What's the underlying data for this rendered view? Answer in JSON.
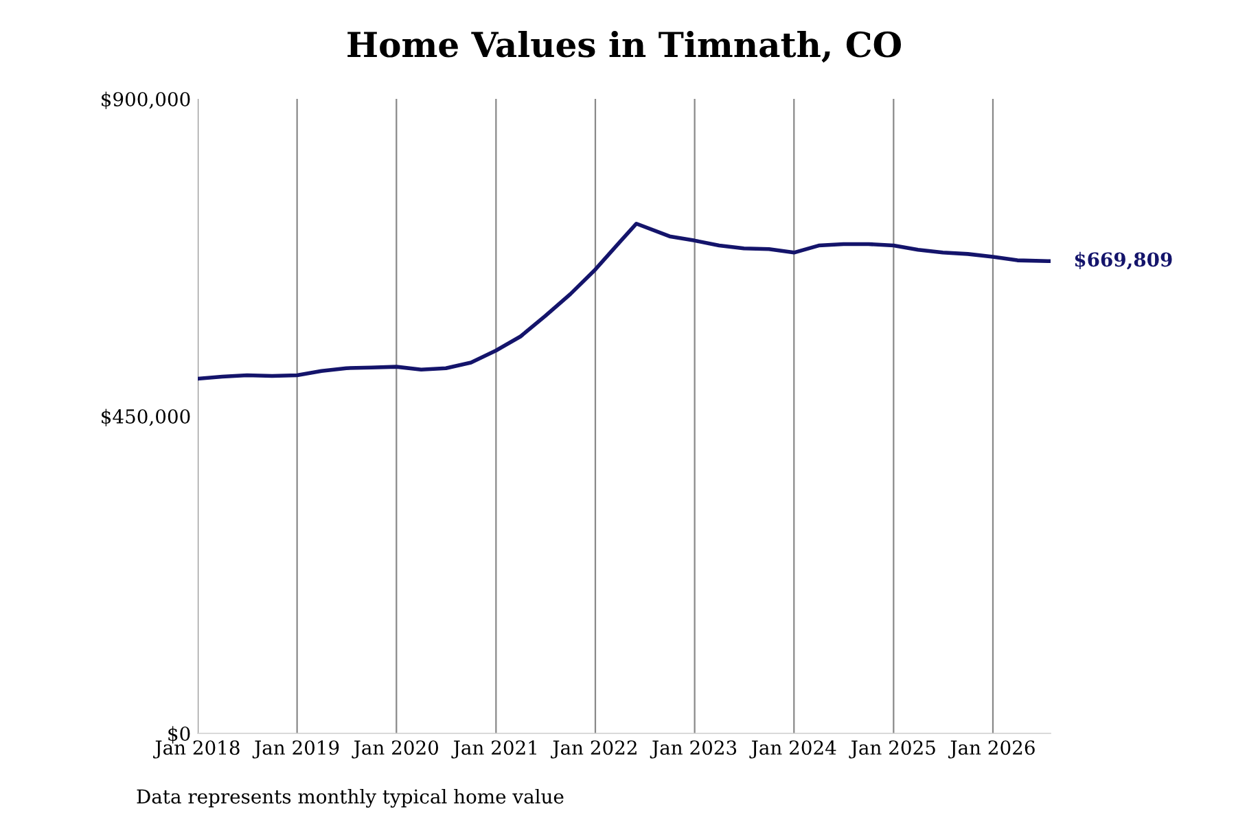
{
  "chart_data": {
    "type": "line",
    "title": "Home Values in Timnath, CO",
    "x": [
      "2018-01",
      "2018-04",
      "2018-07",
      "2018-10",
      "2019-01",
      "2019-04",
      "2019-07",
      "2019-10",
      "2020-01",
      "2020-04",
      "2020-07",
      "2020-10",
      "2021-01",
      "2021-04",
      "2021-07",
      "2021-10",
      "2022-01",
      "2022-04",
      "2022-06",
      "2022-10",
      "2023-01",
      "2023-04",
      "2023-07",
      "2023-10",
      "2024-01",
      "2024-04",
      "2024-07",
      "2024-10",
      "2025-01",
      "2025-04",
      "2025-07",
      "2025-10",
      "2026-01",
      "2026-04",
      "2026-08"
    ],
    "series": [
      {
        "color": "#14146b",
        "values": [
          503000,
          506000,
          508000,
          507000,
          508000,
          514000,
          518000,
          519000,
          520000,
          516000,
          518000,
          526000,
          543000,
          563000,
          592000,
          623000,
          658000,
          697000,
          723000,
          705000,
          699000,
          692000,
          688000,
          687000,
          682000,
          692000,
          694000,
          694000,
          692000,
          686000,
          682000,
          680000,
          676000,
          671000,
          669809
        ]
      }
    ],
    "xticks": [
      {
        "value": "2018-01",
        "label": "Jan 2018"
      },
      {
        "value": "2019-01",
        "label": "Jan 2019"
      },
      {
        "value": "2020-01",
        "label": "Jan 2020"
      },
      {
        "value": "2021-01",
        "label": "Jan 2021"
      },
      {
        "value": "2022-01",
        "label": "Jan 2022"
      },
      {
        "value": "2023-01",
        "label": "Jan 2023"
      },
      {
        "value": "2024-01",
        "label": "Jan 2024"
      },
      {
        "value": "2025-01",
        "label": "Jan 2025"
      },
      {
        "value": "2026-01",
        "label": "Jan 2026"
      }
    ],
    "xlim": [
      "2018-01",
      "2026-08"
    ],
    "ylim": [
      0,
      900000
    ],
    "yticks": [
      {
        "value": 0,
        "label": "$0"
      },
      {
        "value": 450000,
        "label": "$450,000"
      },
      {
        "value": 900000,
        "label": "$900,000"
      }
    ],
    "grid": "x",
    "legend": false,
    "marker": "none",
    "line_style": "solid",
    "annotations": [
      {
        "text": "$669,809",
        "x": "2026-08",
        "y": 669809
      },
      "Data represents monthly typical home value"
    ]
  }
}
